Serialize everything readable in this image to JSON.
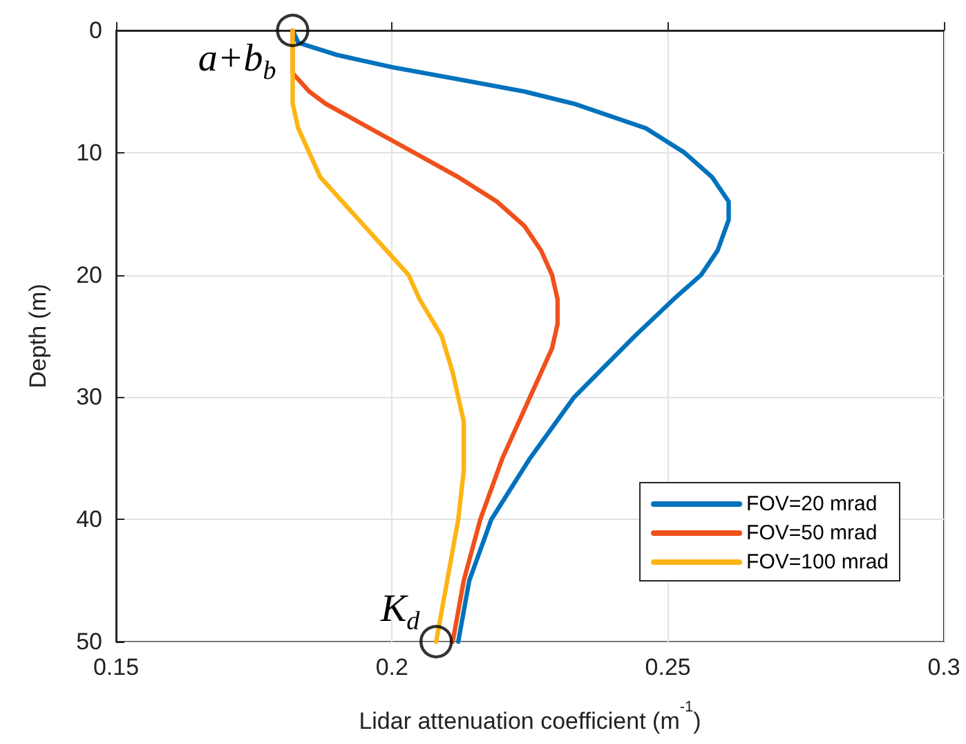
{
  "chart_data": {
    "type": "line",
    "xlabel": "Lidar attenuation coefficient (m$^{-1}$)",
    "ylabel": "Depth (m)",
    "xlim": [
      0.15,
      0.3
    ],
    "xticks": [
      0.15,
      0.2,
      0.25,
      0.3
    ],
    "ylim": [
      50,
      0
    ],
    "yticks": [
      0,
      10,
      20,
      30,
      40,
      50
    ],
    "grid": true,
    "legend": "bottom right",
    "line_style": "solid",
    "marker": "none",
    "series": [
      {
        "name": "FOV=20 mrad",
        "color": "#0072bd",
        "x": [
          0.182,
          0.183,
          0.19,
          0.2,
          0.212,
          0.224,
          0.233,
          0.246,
          0.253,
          0.258,
          0.261,
          0.261,
          0.259,
          0.256,
          0.251,
          0.244,
          0.233,
          0.225,
          0.218,
          0.214,
          0.212
        ],
        "values": [
          0,
          1,
          2,
          3,
          4,
          5,
          6,
          8,
          10,
          12,
          14,
          15.5,
          18,
          20,
          22,
          25,
          30,
          35,
          40,
          45,
          50
        ]
      },
      {
        "name": "FOV=50 mrad",
        "color": "#f0501b",
        "x": [
          0.182,
          0.182,
          0.183,
          0.185,
          0.188,
          0.196,
          0.204,
          0.212,
          0.219,
          0.224,
          0.227,
          0.229,
          0.23,
          0.23,
          0.229,
          0.225,
          0.22,
          0.216,
          0.213,
          0.211
        ],
        "values": [
          0,
          3.5,
          4,
          5,
          6,
          8,
          10,
          12,
          14,
          16,
          18,
          20,
          22,
          24,
          26,
          30,
          35,
          40,
          45,
          50
        ]
      },
      {
        "name": "FOV=100 mrad",
        "color": "#fdb515",
        "x": [
          0.182,
          0.182,
          0.183,
          0.185,
          0.187,
          0.191,
          0.195,
          0.199,
          0.203,
          0.205,
          0.209,
          0.211,
          0.213,
          0.213,
          0.212,
          0.21,
          0.208
        ],
        "values": [
          0,
          6,
          8,
          10,
          12,
          14,
          16,
          18,
          20,
          22,
          25,
          28,
          32,
          36,
          40,
          45,
          50
        ]
      }
    ],
    "annotations": [
      {
        "text": "a+b$_{b}$",
        "x": 0.182,
        "y": 0
      },
      {
        "text": "K$_{d}$",
        "x": 0.208,
        "y": 50
      }
    ]
  }
}
